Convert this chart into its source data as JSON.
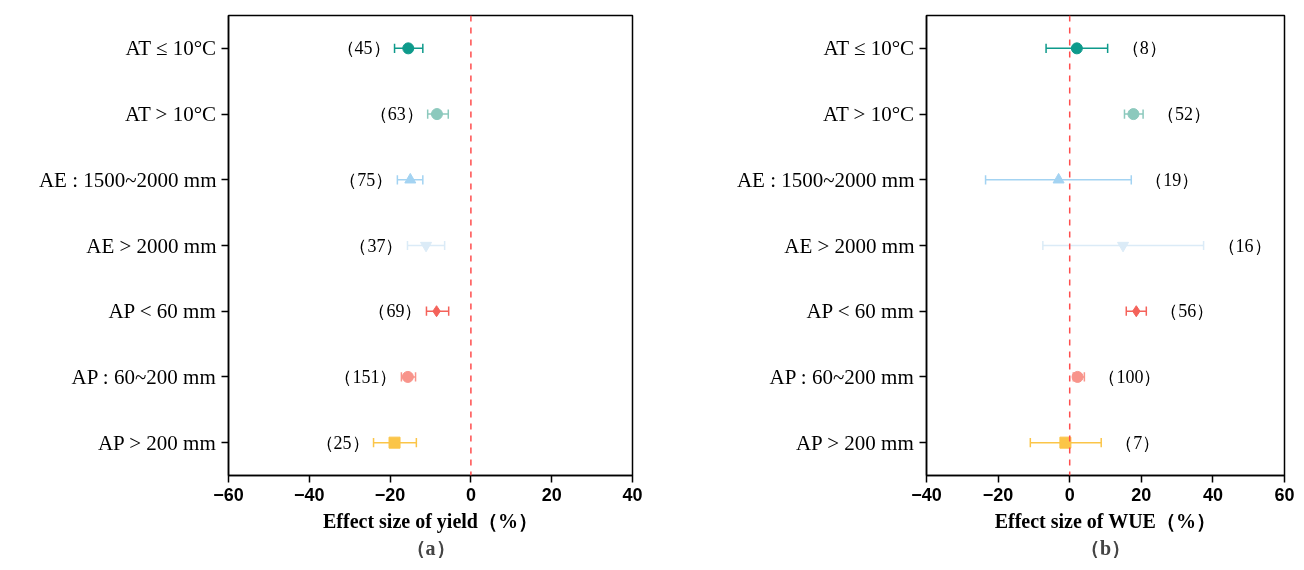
{
  "chart_data": [
    {
      "type": "scatter",
      "orientation": "horizontal",
      "xlabel": "Effect size of yield（%）",
      "grid": false,
      "annotations": [
        {
          "text": "（45）",
          "x": -18.9,
          "y": "AT ≤ 10°C"
        },
        {
          "text": "（63）",
          "x": -10.7,
          "y": "AT > 10°C"
        },
        {
          "text": "（75）",
          "x": -18.2,
          "y": "AE : 1500~2000 mm"
        },
        {
          "text": "（37）",
          "x": -15.7,
          "y": "AE > 2000 mm"
        },
        {
          "text": "（69）",
          "x": -11.0,
          "y": "AP < 60 mm"
        },
        {
          "text": "（151）",
          "x": -17.2,
          "y": "AP : 60~200 mm"
        },
        {
          "text": "（25）",
          "x": -24.1,
          "y": "AP > 200 mm"
        },
        "（a）"
      ],
      "categories": [
        "AT ≤ 10°C",
        "AT > 10°C",
        "AE : 1500~2000 mm",
        "AE > 2000 mm",
        "AP < 60 mm",
        "AP : 60~200 mm",
        "AP > 200 mm"
      ],
      "xlim": [
        -60,
        40
      ],
      "xticks": [
        -60,
        -40,
        -20,
        0,
        20,
        40
      ],
      "ref_lines": [
        {
          "axis": "x",
          "value": 0,
          "color": "#ff4d4d",
          "line_style": "dashed"
        }
      ],
      "series": [
        {
          "color": "#0e9a8b",
          "marker": "circle",
          "values": [
            -15.5,
            null,
            null,
            null,
            null,
            null,
            null
          ],
          "errors": [
            [
              -18.9,
              -11.9
            ],
            null,
            null,
            null,
            null,
            null,
            null
          ]
        },
        {
          "color": "#8cc9bd",
          "marker": "circle",
          "values": [
            null,
            -8.4,
            null,
            null,
            null,
            null,
            null
          ],
          "errors": [
            null,
            [
              -10.7,
              -5.6
            ],
            null,
            null,
            null,
            null,
            null
          ]
        },
        {
          "color": "#a3d3f2",
          "marker": "triangle",
          "values": [
            null,
            null,
            -15.0,
            null,
            null,
            null,
            null
          ],
          "errors": [
            null,
            null,
            [
              -18.2,
              -11.9
            ],
            null,
            null,
            null,
            null
          ]
        },
        {
          "color": "#dbebf7",
          "values": [
            null,
            null,
            null,
            -11.1,
            null,
            null,
            null
          ],
          "errors": [
            null,
            null,
            null,
            [
              -15.7,
              -6.5
            ],
            null,
            null,
            null
          ]
        },
        {
          "color": "#f4625a",
          "marker": "diamond",
          "values": [
            null,
            null,
            null,
            null,
            -8.5,
            null,
            null
          ],
          "errors": [
            null,
            null,
            null,
            null,
            [
              -11.0,
              -5.5
            ],
            null,
            null
          ]
        },
        {
          "color": "#f8948b",
          "marker": "circle",
          "values": [
            null,
            null,
            null,
            null,
            null,
            -15.6,
            null
          ],
          "errors": [
            null,
            null,
            null,
            null,
            null,
            [
              -17.2,
              -13.7
            ],
            null
          ]
        },
        {
          "color": "#fbc548",
          "marker": "square",
          "values": [
            null,
            null,
            null,
            null,
            null,
            null,
            -18.9
          ],
          "errors": [
            null,
            null,
            null,
            null,
            null,
            null,
            [
              -24.1,
              -13.5
            ]
          ]
        }
      ]
    },
    {
      "type": "scatter",
      "orientation": "horizontal",
      "xlabel": "Effect size of WUE（%）",
      "grid": false,
      "annotations": [
        {
          "text": "（8）",
          "x": 10.6,
          "y": "AT ≤ 10°C"
        },
        {
          "text": "（52）",
          "x": 20.5,
          "y": "AT > 10°C"
        },
        {
          "text": "（19）",
          "x": 17.2,
          "y": "AE : 1500~2000 mm"
        },
        {
          "text": "（16）",
          "x": 37.4,
          "y": "AE > 2000 mm"
        },
        {
          "text": "（56）",
          "x": 21.4,
          "y": "AP < 60 mm"
        },
        {
          "text": "（100）",
          "x": 4.1,
          "y": "AP : 60~200 mm"
        },
        {
          "text": "（7）",
          "x": 8.8,
          "y": "AP > 200 mm"
        },
        "（b）"
      ],
      "categories": [
        "AT ≤ 10°C",
        "AT > 10°C",
        "AE : 1500~2000 mm",
        "AE > 2000 mm",
        "AP < 60 mm",
        "AP : 60~200 mm",
        "AP > 200 mm"
      ],
      "xlim": [
        -40,
        60
      ],
      "xticks": [
        -40,
        -20,
        0,
        20,
        40,
        60
      ],
      "ref_lines": [
        {
          "axis": "x",
          "value": 0,
          "color": "#ff4d4d",
          "line_style": "dashed"
        }
      ],
      "series": [
        {
          "color": "#0e9a8b",
          "marker": "circle",
          "values": [
            2.0,
            null,
            null,
            null,
            null,
            null,
            null
          ],
          "errors": [
            [
              -6.6,
              10.6
            ],
            null,
            null,
            null,
            null,
            null,
            null
          ]
        },
        {
          "color": "#8cc9bd",
          "marker": "circle",
          "values": [
            null,
            17.8,
            null,
            null,
            null,
            null,
            null
          ],
          "errors": [
            null,
            [
              15.3,
              20.5
            ],
            null,
            null,
            null,
            null,
            null
          ]
        },
        {
          "color": "#a3d3f2",
          "marker": "triangle",
          "values": [
            null,
            null,
            -3.1,
            null,
            null,
            null,
            null
          ],
          "errors": [
            null,
            null,
            [
              -23.5,
              17.2
            ],
            null,
            null,
            null,
            null
          ]
        },
        {
          "color": "#dbebf7",
          "values": [
            null,
            null,
            null,
            14.9,
            null,
            null,
            null
          ],
          "errors": [
            null,
            null,
            null,
            [
              -7.5,
              37.4
            ],
            null,
            null,
            null
          ]
        },
        {
          "color": "#f4625a",
          "marker": "diamond",
          "values": [
            null,
            null,
            null,
            null,
            18.6,
            null,
            null
          ],
          "errors": [
            null,
            null,
            null,
            null,
            [
              15.8,
              21.4
            ],
            null,
            null
          ]
        },
        {
          "color": "#f8948b",
          "marker": "circle",
          "values": [
            null,
            null,
            null,
            null,
            null,
            2.2,
            null
          ],
          "errors": [
            null,
            null,
            null,
            null,
            null,
            [
              1.0,
              4.1
            ],
            null
          ]
        },
        {
          "color": "#fbc548",
          "marker": "square",
          "values": [
            null,
            null,
            null,
            null,
            null,
            null,
            -1.2
          ],
          "errors": [
            null,
            null,
            null,
            null,
            null,
            null,
            [
              -11.0,
              8.8
            ]
          ]
        }
      ]
    }
  ]
}
